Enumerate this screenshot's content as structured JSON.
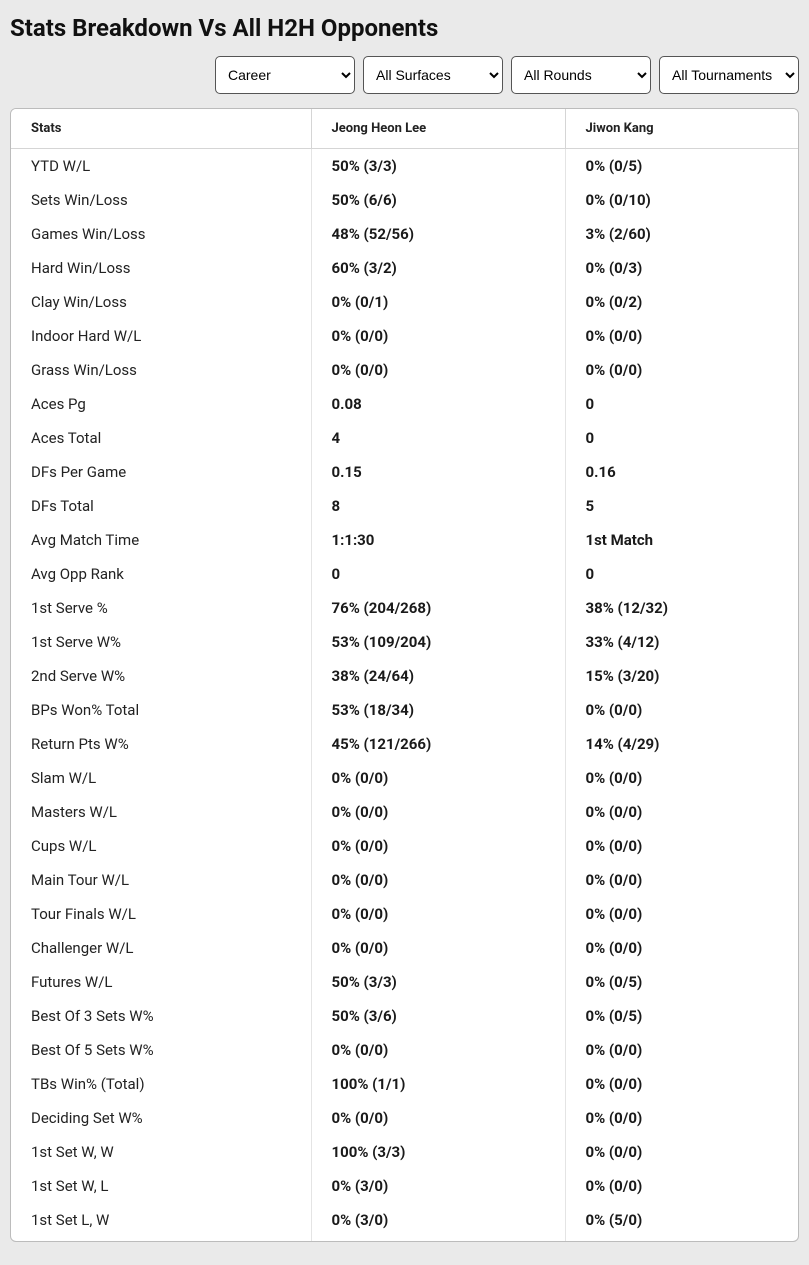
{
  "title": "Stats Breakdown Vs All H2H Opponents",
  "filters": {
    "career": {
      "selected": "Career",
      "options": [
        "Career"
      ]
    },
    "surfaces": {
      "selected": "All Surfaces",
      "options": [
        "All Surfaces"
      ]
    },
    "rounds": {
      "selected": "All Rounds",
      "options": [
        "All Rounds"
      ]
    },
    "tournaments": {
      "selected": "All Tournaments",
      "options": [
        "All Tournaments"
      ]
    }
  },
  "columns": {
    "stats": "Stats",
    "player1": "Jeong Heon Lee",
    "player2": "Jiwon Kang"
  },
  "rows": [
    {
      "label": "YTD W/L",
      "p1": "50% (3/3)",
      "p2": "0% (0/5)"
    },
    {
      "label": "Sets Win/Loss",
      "p1": "50% (6/6)",
      "p2": "0% (0/10)"
    },
    {
      "label": "Games Win/Loss",
      "p1": "48% (52/56)",
      "p2": "3% (2/60)"
    },
    {
      "label": "Hard Win/Loss",
      "p1": "60% (3/2)",
      "p2": "0% (0/3)"
    },
    {
      "label": "Clay Win/Loss",
      "p1": "0% (0/1)",
      "p2": "0% (0/2)"
    },
    {
      "label": "Indoor Hard W/L",
      "p1": "0% (0/0)",
      "p2": "0% (0/0)"
    },
    {
      "label": "Grass Win/Loss",
      "p1": "0% (0/0)",
      "p2": "0% (0/0)"
    },
    {
      "label": "Aces Pg",
      "p1": "0.08",
      "p2": "0"
    },
    {
      "label": "Aces Total",
      "p1": "4",
      "p2": "0"
    },
    {
      "label": "DFs Per Game",
      "p1": "0.15",
      "p2": "0.16"
    },
    {
      "label": "DFs Total",
      "p1": "8",
      "p2": "5"
    },
    {
      "label": "Avg Match Time",
      "p1": "1:1:30",
      "p2": "1st Match"
    },
    {
      "label": "Avg Opp Rank",
      "p1": "0",
      "p2": "0"
    },
    {
      "label": "1st Serve %",
      "p1": "76% (204/268)",
      "p2": "38% (12/32)"
    },
    {
      "label": "1st Serve W%",
      "p1": "53% (109/204)",
      "p2": "33% (4/12)"
    },
    {
      "label": "2nd Serve W%",
      "p1": "38% (24/64)",
      "p2": "15% (3/20)"
    },
    {
      "label": "BPs Won% Total",
      "p1": "53% (18/34)",
      "p2": "0% (0/0)"
    },
    {
      "label": "Return Pts W%",
      "p1": "45% (121/266)",
      "p2": "14% (4/29)"
    },
    {
      "label": "Slam W/L",
      "p1": "0% (0/0)",
      "p2": "0% (0/0)"
    },
    {
      "label": "Masters W/L",
      "p1": "0% (0/0)",
      "p2": "0% (0/0)"
    },
    {
      "label": "Cups W/L",
      "p1": "0% (0/0)",
      "p2": "0% (0/0)"
    },
    {
      "label": "Main Tour W/L",
      "p1": "0% (0/0)",
      "p2": "0% (0/0)"
    },
    {
      "label": "Tour Finals W/L",
      "p1": "0% (0/0)",
      "p2": "0% (0/0)"
    },
    {
      "label": "Challenger W/L",
      "p1": "0% (0/0)",
      "p2": "0% (0/0)"
    },
    {
      "label": "Futures W/L",
      "p1": "50% (3/3)",
      "p2": "0% (0/5)"
    },
    {
      "label": "Best Of 3 Sets W%",
      "p1": "50% (3/6)",
      "p2": "0% (0/5)"
    },
    {
      "label": "Best Of 5 Sets W%",
      "p1": "0% (0/0)",
      "p2": "0% (0/0)"
    },
    {
      "label": "TBs Win% (Total)",
      "p1": "100% (1/1)",
      "p2": "0% (0/0)"
    },
    {
      "label": "Deciding Set W%",
      "p1": "0% (0/0)",
      "p2": "0% (0/0)"
    },
    {
      "label": "1st Set W, W",
      "p1": "100% (3/3)",
      "p2": "0% (0/0)"
    },
    {
      "label": "1st Set W, L",
      "p1": "0% (3/0)",
      "p2": "0% (0/0)"
    },
    {
      "label": "1st Set L, W",
      "p1": "0% (3/0)",
      "p2": "0% (5/0)"
    }
  ],
  "colors": {
    "page_bg": "#eaeaea",
    "panel_bg": "#ffffff",
    "border": "#bcbcbc",
    "cell_border": "#e4e4e4",
    "text": "#222222"
  }
}
